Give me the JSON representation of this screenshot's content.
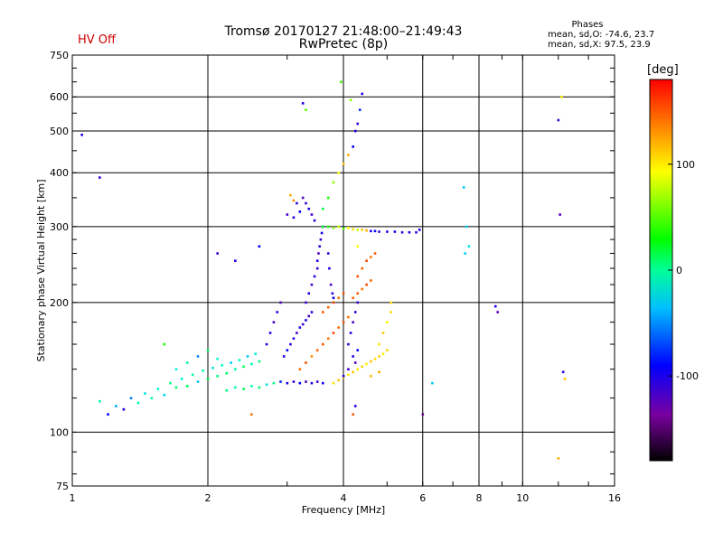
{
  "header": {
    "title_line1": "Tromsø 20170127 21:48:00–21:49:43",
    "title_line2": "RwPretec (8p)",
    "hv_status": "HV Off"
  },
  "phases": {
    "title": "Phases",
    "o_line": "mean, sd,O: -74.6, 23.7",
    "x_line": "mean, sd,X:  97.5, 23.9"
  },
  "colorbar": {
    "unit": "[deg]",
    "ticks": [
      "100",
      "0",
      "-100"
    ],
    "tick_values": [
      100,
      0,
      -100
    ],
    "range": [
      -180,
      180
    ],
    "colors": [
      "#000000",
      "#7a00a0",
      "#0000ff",
      "#00bfff",
      "#00ffcc",
      "#00ff00",
      "#ffff00",
      "#ff8000",
      "#ff0000"
    ]
  },
  "chart_data": {
    "type": "scatter",
    "title": "Tromsø 20170127 21:48:00–21:49:43",
    "subtitle": "RwPretec (8p)",
    "xlabel": "Frequency [MHz]",
    "ylabel": "Stationary phase Virtual Height [km]",
    "xscale": "log",
    "yscale": "log",
    "xlim": [
      1,
      16
    ],
    "ylim": [
      75,
      750
    ],
    "grid": true,
    "x_ticks": [
      1,
      2,
      4,
      6,
      8,
      10,
      16
    ],
    "x_tick_labels": [
      "1",
      "2",
      "4",
      "6",
      "8",
      "10",
      "16"
    ],
    "y_ticks": [
      75,
      100,
      200,
      300,
      400,
      500,
      600,
      750
    ],
    "y_tick_labels": [
      "75",
      "100",
      "200",
      "300",
      "400",
      "500",
      "600",
      "750"
    ],
    "points": [
      [
        1.15,
        118,
        10
      ],
      [
        1.2,
        110,
        -90
      ],
      [
        1.25,
        115,
        -50
      ],
      [
        1.3,
        113,
        -100
      ],
      [
        1.35,
        120,
        -60
      ],
      [
        1.4,
        117,
        5
      ],
      [
        1.45,
        123,
        -20
      ],
      [
        1.5,
        120,
        10
      ],
      [
        1.55,
        126,
        0
      ],
      [
        1.6,
        122,
        -30
      ],
      [
        1.65,
        130,
        15
      ],
      [
        1.7,
        127,
        20
      ],
      [
        1.75,
        133,
        -10
      ],
      [
        1.8,
        128,
        25
      ],
      [
        1.85,
        136,
        5
      ],
      [
        1.9,
        131,
        -40
      ],
      [
        1.95,
        139,
        10
      ],
      [
        2.0,
        133,
        30
      ],
      [
        2.05,
        141,
        -20
      ],
      [
        2.1,
        135,
        15
      ],
      [
        2.15,
        143,
        0
      ],
      [
        2.2,
        137,
        20
      ],
      [
        2.25,
        145,
        -30
      ],
      [
        2.3,
        140,
        10
      ],
      [
        2.35,
        147,
        0
      ],
      [
        2.4,
        142,
        25
      ],
      [
        2.45,
        150,
        -40
      ],
      [
        2.5,
        144,
        5
      ],
      [
        2.55,
        152,
        -10
      ],
      [
        2.6,
        146,
        15
      ],
      [
        1.7,
        140,
        -5
      ],
      [
        1.8,
        145,
        10
      ],
      [
        1.9,
        150,
        -60
      ],
      [
        2.0,
        155,
        20
      ],
      [
        2.1,
        148,
        0
      ],
      [
        2.2,
        125,
        15
      ],
      [
        2.3,
        127,
        5
      ],
      [
        2.4,
        126,
        25
      ],
      [
        2.5,
        128,
        10
      ],
      [
        2.6,
        127,
        20
      ],
      [
        2.7,
        129,
        -20
      ],
      [
        2.8,
        130,
        15
      ],
      [
        2.9,
        131,
        -80
      ],
      [
        3.0,
        130,
        -100
      ],
      [
        3.1,
        131,
        -110
      ],
      [
        3.2,
        130,
        -90
      ],
      [
        3.3,
        131,
        -120
      ],
      [
        3.4,
        130,
        -100
      ],
      [
        3.5,
        131,
        -115
      ],
      [
        3.6,
        130,
        -95
      ],
      [
        2.7,
        160,
        -110
      ],
      [
        2.75,
        170,
        -100
      ],
      [
        2.8,
        180,
        -115
      ],
      [
        2.85,
        190,
        -105
      ],
      [
        2.9,
        200,
        -120
      ],
      [
        2.95,
        150,
        -100
      ],
      [
        3.0,
        155,
        -95
      ],
      [
        3.05,
        160,
        -110
      ],
      [
        3.1,
        165,
        -105
      ],
      [
        3.15,
        170,
        -115
      ],
      [
        3.2,
        175,
        -100
      ],
      [
        3.25,
        178,
        -110
      ],
      [
        3.3,
        182,
        -95
      ],
      [
        3.35,
        186,
        -120
      ],
      [
        3.4,
        190,
        -105
      ],
      [
        3.3,
        200,
        -110
      ],
      [
        3.35,
        210,
        -100
      ],
      [
        3.4,
        220,
        -115
      ],
      [
        3.45,
        230,
        -105
      ],
      [
        3.5,
        240,
        -110
      ],
      [
        3.5,
        250,
        -100
      ],
      [
        3.52,
        260,
        -120
      ],
      [
        3.54,
        270,
        -105
      ],
      [
        3.56,
        280,
        -115
      ],
      [
        3.58,
        290,
        -100
      ],
      [
        3.6,
        300,
        -110
      ],
      [
        3.45,
        310,
        -105
      ],
      [
        3.4,
        320,
        -115
      ],
      [
        3.35,
        330,
        -100
      ],
      [
        3.3,
        340,
        -110
      ],
      [
        3.25,
        350,
        -120
      ],
      [
        3.2,
        325,
        -90
      ],
      [
        3.1,
        315,
        -100
      ],
      [
        3.0,
        320,
        -115
      ],
      [
        3.15,
        340,
        -105
      ],
      [
        3.7,
        260,
        -110
      ],
      [
        3.72,
        240,
        -100
      ],
      [
        3.75,
        220,
        -115
      ],
      [
        3.78,
        210,
        -105
      ],
      [
        3.8,
        205,
        -95
      ],
      [
        3.6,
        300,
        30
      ],
      [
        3.7,
        300,
        50
      ],
      [
        3.8,
        298,
        70
      ],
      [
        3.9,
        300,
        80
      ],
      [
        4.0,
        297,
        60
      ],
      [
        4.1,
        298,
        90
      ],
      [
        4.2,
        296,
        100
      ],
      [
        4.3,
        295,
        80
      ],
      [
        4.4,
        295,
        110
      ],
      [
        4.5,
        294,
        120
      ],
      [
        4.6,
        293,
        -100
      ],
      [
        4.7,
        293,
        -90
      ],
      [
        4.8,
        292,
        -110
      ],
      [
        5.0,
        292,
        -100
      ],
      [
        5.2,
        292,
        -95
      ],
      [
        5.4,
        291,
        -105
      ],
      [
        5.6,
        291,
        -100
      ],
      [
        5.8,
        291,
        -110
      ],
      [
        5.9,
        295,
        -100
      ],
      [
        4.3,
        270,
        90
      ],
      [
        3.2,
        140,
        140
      ],
      [
        3.3,
        145,
        150
      ],
      [
        3.4,
        150,
        130
      ],
      [
        3.5,
        155,
        145
      ],
      [
        3.6,
        160,
        150
      ],
      [
        3.7,
        165,
        140
      ],
      [
        3.8,
        170,
        155
      ],
      [
        3.9,
        175,
        145
      ],
      [
        4.0,
        180,
        150
      ],
      [
        4.1,
        185,
        140
      ],
      [
        3.6,
        190,
        150
      ],
      [
        3.7,
        195,
        145
      ],
      [
        3.8,
        200,
        155
      ],
      [
        3.9,
        205,
        140
      ],
      [
        4.0,
        210,
        150
      ],
      [
        4.3,
        230,
        150
      ],
      [
        4.4,
        240,
        145
      ],
      [
        4.5,
        250,
        155
      ],
      [
        4.6,
        255,
        140
      ],
      [
        4.7,
        260,
        150
      ],
      [
        4.2,
        205,
        145
      ],
      [
        4.3,
        210,
        150
      ],
      [
        4.4,
        215,
        140
      ],
      [
        4.5,
        220,
        155
      ],
      [
        4.6,
        225,
        145
      ],
      [
        3.8,
        130,
        100
      ],
      [
        3.9,
        132,
        110
      ],
      [
        4.0,
        134,
        105
      ],
      [
        4.1,
        136,
        95
      ],
      [
        4.2,
        138,
        110
      ],
      [
        4.3,
        140,
        100
      ],
      [
        4.4,
        142,
        105
      ],
      [
        4.5,
        144,
        95
      ],
      [
        4.6,
        146,
        110
      ],
      [
        4.7,
        148,
        100
      ],
      [
        4.8,
        150,
        105
      ],
      [
        4.9,
        152,
        95
      ],
      [
        5.0,
        155,
        105
      ],
      [
        4.8,
        160,
        100
      ],
      [
        4.9,
        170,
        110
      ],
      [
        5.0,
        180,
        95
      ],
      [
        5.1,
        190,
        105
      ],
      [
        5.1,
        200,
        100
      ],
      [
        4.6,
        135,
        115
      ],
      [
        4.8,
        138,
        120
      ],
      [
        4.1,
        160,
        -110
      ],
      [
        4.15,
        170,
        -100
      ],
      [
        4.2,
        180,
        -115
      ],
      [
        4.25,
        190,
        -105
      ],
      [
        4.3,
        200,
        -110
      ],
      [
        4.2,
        150,
        -100
      ],
      [
        4.1,
        140,
        -115
      ],
      [
        4.0,
        135,
        -105
      ],
      [
        4.25,
        145,
        -120
      ],
      [
        4.3,
        155,
        -95
      ],
      [
        3.6,
        330,
        30
      ],
      [
        3.7,
        350,
        50
      ],
      [
        3.8,
        380,
        70
      ],
      [
        3.9,
        400,
        90
      ],
      [
        4.0,
        420,
        110
      ],
      [
        4.1,
        440,
        120
      ],
      [
        4.2,
        460,
        -90
      ],
      [
        4.25,
        500,
        -100
      ],
      [
        4.3,
        520,
        -110
      ],
      [
        4.35,
        560,
        -80
      ],
      [
        4.4,
        610,
        -105
      ],
      [
        4.15,
        590,
        70
      ],
      [
        3.95,
        650,
        55
      ],
      [
        3.3,
        560,
        60
      ],
      [
        3.25,
        580,
        -100
      ],
      [
        1.15,
        390,
        -110
      ],
      [
        1.05,
        490,
        -100
      ],
      [
        2.6,
        270,
        -90
      ],
      [
        2.3,
        250,
        -100
      ],
      [
        2.1,
        260,
        -110
      ],
      [
        7.4,
        370,
        -40
      ],
      [
        7.5,
        300,
        -30
      ],
      [
        7.6,
        270,
        -20
      ],
      [
        7.45,
        260,
        -35
      ],
      [
        8.8,
        190,
        -120
      ],
      [
        8.7,
        196,
        -100
      ],
      [
        12.0,
        530,
        -110
      ],
      [
        12.1,
        320,
        -120
      ],
      [
        12.2,
        600,
        95
      ],
      [
        12.3,
        138,
        -100
      ],
      [
        12.4,
        133,
        110
      ],
      [
        12.0,
        87,
        120
      ],
      [
        6.0,
        110,
        -140
      ],
      [
        6.3,
        130,
        -40
      ],
      [
        1.6,
        160,
        50
      ],
      [
        2.5,
        110,
        140
      ],
      [
        4.2,
        110,
        150
      ],
      [
        4.25,
        115,
        -100
      ],
      [
        3.1,
        345,
        130
      ],
      [
        3.05,
        355,
        120
      ]
    ]
  }
}
